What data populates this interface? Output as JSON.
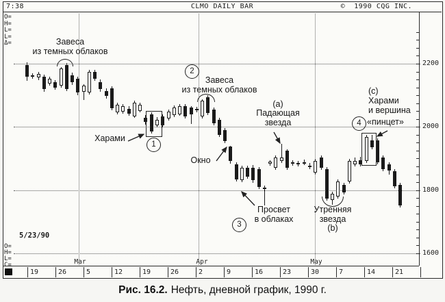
{
  "header": {
    "time": "7:38",
    "title": "CLMO DAILY BAR",
    "copyright": "©  1990 CQG INC."
  },
  "quote_fields": {
    "top": [
      "O=",
      "H=",
      "L=",
      "L=",
      "Δ="
    ],
    "date": "5/23/90",
    "bottom": [
      "O=",
      "H=",
      "L=",
      "C="
    ]
  },
  "y_axis": {
    "labels": [
      2200,
      2000,
      1800,
      1600
    ],
    "min": 1600,
    "max": 2300,
    "minor_step": 25
  },
  "x_axis": {
    "date_labels": [
      "19",
      "26",
      "5",
      "12",
      "19",
      "26",
      "2",
      "9",
      "16",
      "23",
      "30",
      "7",
      "14",
      "21"
    ],
    "month_labels": [
      "Mar",
      "Apr",
      "May"
    ]
  },
  "annotations": {
    "dark_cloud_1": {
      "lines": [
        "Завеса",
        "из темных облаков"
      ]
    },
    "dark_cloud_2": {
      "number": "2",
      "lines": [
        "Завеса",
        "из темных облаков"
      ]
    },
    "harami_1": {
      "number": "1",
      "label": "Харами"
    },
    "window": {
      "label": "Окно"
    },
    "shooting_star": {
      "letter": "(a)",
      "lines": [
        "Падающая",
        "звезда"
      ]
    },
    "piercing": {
      "number": "3",
      "lines": [
        "Просвет",
        "в облаках"
      ]
    },
    "morning_star": {
      "lines": [
        "Утренняя",
        "звезда",
        "(b)"
      ]
    },
    "harami_tweezers": {
      "number": "4",
      "letter": "(c)",
      "lines": [
        "Харами",
        "и вершина",
        "«пинцет»"
      ]
    }
  },
  "caption": {
    "figure": "Рис. 16.2.",
    "text": "Нефть, дневной график, 1990 г."
  },
  "chart_data": {
    "type": "candlestick",
    "symbol": "CLMO",
    "timeframe": "DAILY BAR",
    "title": "Нефть, дневной график, 1990 г.",
    "ylim": [
      1600,
      2300
    ],
    "x_range": "Feb 19 – May 23, 1990 (weekly ticks)",
    "price_format": "[open, high, low, close]",
    "candles": [
      [
        2196,
        2205,
        2146,
        2159
      ],
      [
        2160,
        2170,
        2152,
        2163
      ],
      [
        2156,
        2174,
        2149,
        2167
      ],
      [
        2159,
        2165,
        2112,
        2120
      ],
      [
        2137,
        2158,
        2130,
        2152
      ],
      [
        2142,
        2148,
        2118,
        2125
      ],
      [
        2131,
        2190,
        2125,
        2185
      ],
      [
        2196,
        2203,
        2113,
        2120
      ],
      [
        2163,
        2172,
        2132,
        2142
      ],
      [
        2152,
        2158,
        2100,
        2109
      ],
      [
        2111,
        2135,
        2085,
        2131
      ],
      [
        2109,
        2180,
        2103,
        2174
      ],
      [
        2174,
        2181,
        2146,
        2152
      ],
      [
        2142,
        2150,
        2112,
        2120
      ],
      [
        2113,
        2122,
        2090,
        2098
      ],
      [
        2122,
        2128,
        2052,
        2059
      ],
      [
        2046,
        2076,
        2040,
        2070
      ],
      [
        2048,
        2072,
        2042,
        2066
      ],
      [
        2057,
        2065,
        2035,
        2042
      ],
      [
        2033,
        2083,
        2028,
        2077
      ],
      [
        2051,
        2076,
        2046,
        2070
      ],
      [
        2029,
        2038,
        2008,
        2016
      ],
      [
        2040,
        2046,
        1980,
        1986
      ],
      [
        2005,
        2030,
        1998,
        2022
      ],
      [
        2033,
        2040,
        1998,
        2005
      ],
      [
        2026,
        2055,
        2020,
        2048
      ],
      [
        2037,
        2068,
        2031,
        2061
      ],
      [
        2040,
        2072,
        2035,
        2066
      ],
      [
        2066,
        2072,
        2027,
        2033
      ],
      [
        2061,
        2066,
        2010,
        2040
      ],
      [
        2053,
        2063,
        2046,
        2057
      ],
      [
        2033,
        2088,
        2027,
        2083
      ],
      [
        2094,
        2100,
        2038,
        2044
      ],
      [
        2055,
        2061,
        2005,
        2012
      ],
      [
        2022,
        2028,
        1968,
        1975
      ],
      [
        1990,
        1996,
        1948,
        1955
      ],
      [
        1938,
        1940,
        1884,
        1892
      ],
      [
        1882,
        1888,
        1827,
        1834
      ],
      [
        1832,
        1877,
        1825,
        1871
      ],
      [
        1871,
        1877,
        1836,
        1843
      ],
      [
        1871,
        1879,
        1823,
        1832
      ],
      [
        1867,
        1873,
        1803,
        1810
      ],
      [
        1804,
        1815,
        1751,
        1808
      ],
      [
        1884,
        1895,
        1878,
        1890
      ],
      [
        1871,
        1910,
        1864,
        1903
      ],
      [
        1892,
        1947,
        1886,
        1903
      ],
      [
        1925,
        1930,
        1864,
        1871
      ],
      [
        1884,
        1895,
        1877,
        1888
      ],
      [
        1886,
        1893,
        1875,
        1882
      ],
      [
        1888,
        1897,
        1880,
        1884
      ],
      [
        1873,
        1886,
        1866,
        1878
      ],
      [
        1856,
        1899,
        1849,
        1892
      ],
      [
        1903,
        1910,
        1864,
        1871
      ],
      [
        1867,
        1873,
        1766,
        1773
      ],
      [
        1768,
        1795,
        1753,
        1788
      ],
      [
        1779,
        1834,
        1773,
        1827
      ],
      [
        1817,
        1823,
        1786,
        1793
      ],
      [
        1827,
        1899,
        1821,
        1892
      ],
      [
        1882,
        1903,
        1875,
        1892
      ],
      [
        1895,
        1906,
        1875,
        1882
      ],
      [
        1892,
        1975,
        1886,
        1968
      ],
      [
        1957,
        1975,
        1930,
        1936
      ],
      [
        1957,
        1964,
        1882,
        1888
      ],
      [
        1903,
        1910,
        1860,
        1867
      ],
      [
        1882,
        1888,
        1849,
        1862
      ],
      [
        1860,
        1866,
        1806,
        1812
      ],
      [
        1817,
        1823,
        1744,
        1751
      ]
    ],
    "patterns": [
      {
        "name": "Завеса из темных облаков (dark cloud cover)",
        "candles_1based": [
          7,
          8
        ]
      },
      {
        "name": "Харами (1)",
        "candles_1based": [
          23,
          24
        ]
      },
      {
        "name": "Завеса из темных облаков (2)",
        "candles_1based": [
          32,
          33
        ]
      },
      {
        "name": "Окно (window / gap)",
        "candles_1based": [
          36,
          37
        ]
      },
      {
        "name": "Просвет в облаках (3)",
        "candles_1based": [
          38,
          39
        ]
      },
      {
        "name": "Падающая звезда (a)",
        "candles_1based": [
          46
        ]
      },
      {
        "name": "Утренняя звезда (b)",
        "candles_1based": [
          54,
          55,
          56
        ]
      },
      {
        "name": "Харами и вершина «пинцет» (4, c)",
        "candles_1based": [
          61,
          62
        ]
      }
    ]
  }
}
